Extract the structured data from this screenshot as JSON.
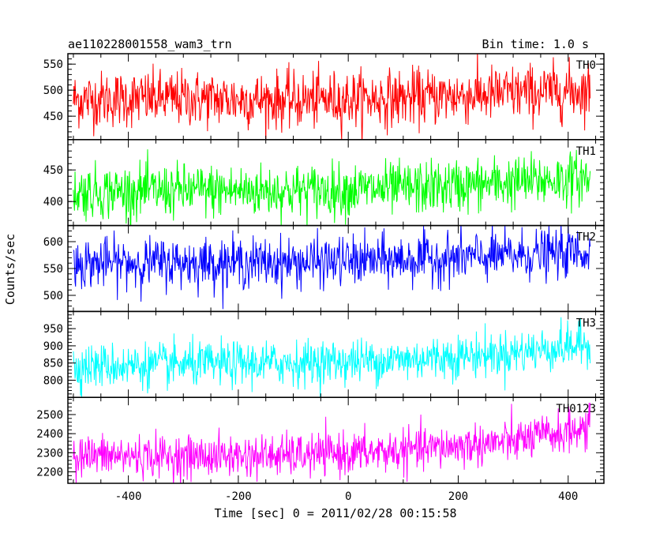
{
  "header": {
    "title": "ae110228001558_wam3_trn",
    "bin_time": "Bin time: 1.0 s"
  },
  "chart_data": {
    "type": "line",
    "xlabel": "Time [sec] 0 = 2011/02/28 00:15:58",
    "ylabel": "Counts/sec",
    "xlim": [
      -510,
      465
    ],
    "x_range": [
      -500,
      440
    ],
    "bin_time_s": 1.0,
    "x_ticks": [
      -400,
      -200,
      0,
      200,
      400
    ],
    "panels": [
      {
        "name": "TH0",
        "color": "#ff0000",
        "ylim": [
          405,
          570
        ],
        "y_ticks": [
          450,
          500,
          550
        ],
        "baseline": [
          {
            "x": -500,
            "y": 482
          },
          {
            "x": -300,
            "y": 484
          },
          {
            "x": -100,
            "y": 480
          },
          {
            "x": 100,
            "y": 485
          },
          {
            "x": 300,
            "y": 494
          },
          {
            "x": 440,
            "y": 500
          }
        ],
        "spread": 27
      },
      {
        "name": "TH1",
        "color": "#00ff00",
        "ylim": [
          362,
          498
        ],
        "y_ticks": [
          400,
          450
        ],
        "baseline": [
          {
            "x": -500,
            "y": 415
          },
          {
            "x": -300,
            "y": 417
          },
          {
            "x": -100,
            "y": 417
          },
          {
            "x": 100,
            "y": 420
          },
          {
            "x": 300,
            "y": 430
          },
          {
            "x": 440,
            "y": 438
          }
        ],
        "spread": 21
      },
      {
        "name": "TH2",
        "color": "#0000ff",
        "ylim": [
          470,
          630
        ],
        "y_ticks": [
          500,
          550,
          600
        ],
        "baseline": [
          {
            "x": -500,
            "y": 560
          },
          {
            "x": -300,
            "y": 561
          },
          {
            "x": -100,
            "y": 561
          },
          {
            "x": 100,
            "y": 566
          },
          {
            "x": 300,
            "y": 574
          },
          {
            "x": 440,
            "y": 582
          }
        ],
        "spread": 23
      },
      {
        "name": "TH3",
        "color": "#00ffff",
        "ylim": [
          750,
          1000
        ],
        "y_ticks": [
          800,
          850,
          900,
          950
        ],
        "baseline": [
          {
            "x": -500,
            "y": 840
          },
          {
            "x": -300,
            "y": 845
          },
          {
            "x": -100,
            "y": 850
          },
          {
            "x": 100,
            "y": 860
          },
          {
            "x": 300,
            "y": 880
          },
          {
            "x": 440,
            "y": 905
          }
        ],
        "spread": 32
      },
      {
        "name": "TH0123",
        "color": "#ff00ff",
        "ylim": [
          2140,
          2590
        ],
        "y_ticks": [
          2200,
          2300,
          2400,
          2500
        ],
        "baseline": [
          {
            "x": -500,
            "y": 2285
          },
          {
            "x": -300,
            "y": 2280
          },
          {
            "x": -100,
            "y": 2285
          },
          {
            "x": 100,
            "y": 2310
          },
          {
            "x": 300,
            "y": 2360
          },
          {
            "x": 440,
            "y": 2430
          }
        ],
        "spread": 55
      }
    ]
  }
}
